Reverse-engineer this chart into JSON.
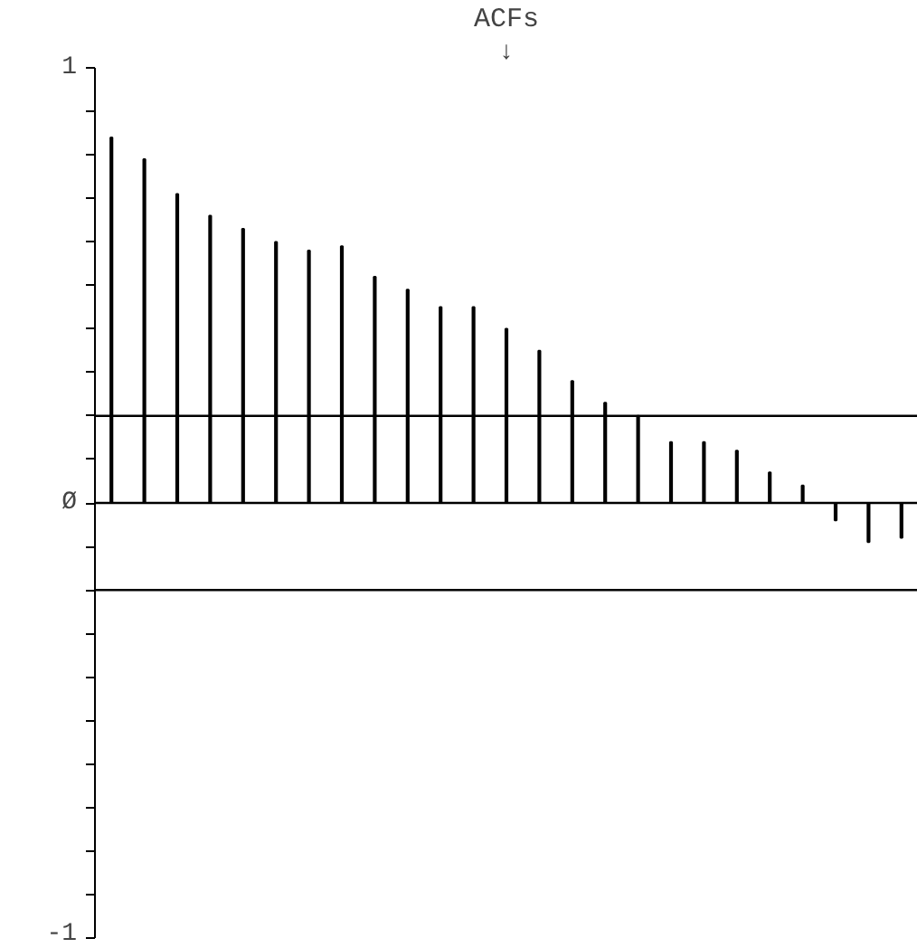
{
  "chart_data": {
    "type": "bar",
    "title": "ACFs",
    "annotations": [
      "↓"
    ],
    "categories": [
      null,
      null,
      null,
      null,
      null,
      null,
      null,
      null,
      null,
      null,
      null,
      null,
      null,
      null,
      null,
      null,
      null,
      null,
      null,
      null,
      null,
      null,
      null,
      null,
      null
    ],
    "values": [
      0.84,
      0.79,
      0.71,
      0.66,
      0.63,
      0.6,
      0.58,
      0.59,
      0.52,
      0.49,
      0.45,
      0.45,
      0.4,
      0.35,
      0.28,
      0.23,
      0.2,
      0.14,
      0.14,
      0.12,
      0.07,
      0.04,
      -0.04,
      -0.09,
      -0.08
    ],
    "color": "#000000",
    "ylim": [
      -1,
      1
    ],
    "yticks": [
      {
        "value": -1,
        "label": "-1"
      },
      {
        "value": -0.9,
        "label": null
      },
      {
        "value": -0.8,
        "label": null
      },
      {
        "value": -0.7,
        "label": null
      },
      {
        "value": -0.6,
        "label": null
      },
      {
        "value": -0.5,
        "label": null
      },
      {
        "value": -0.4,
        "label": null
      },
      {
        "value": -0.3,
        "label": null
      },
      {
        "value": -0.2,
        "label": null
      },
      {
        "value": -0.1,
        "label": null
      },
      {
        "value": 0,
        "label": "Ø"
      },
      {
        "value": 0.1,
        "label": null
      },
      {
        "value": 0.2,
        "label": null
      },
      {
        "value": 0.3,
        "label": null
      },
      {
        "value": 0.4,
        "label": null
      },
      {
        "value": 0.5,
        "label": null
      },
      {
        "value": 0.6,
        "label": null
      },
      {
        "value": 0.7,
        "label": null
      },
      {
        "value": 0.8,
        "label": null
      },
      {
        "value": 0.9,
        "label": null
      },
      {
        "value": 1,
        "label": "1"
      }
    ],
    "ref_lines": [
      {
        "axis": "y",
        "value": 0.2,
        "color": "#000000"
      },
      {
        "axis": "y",
        "value": -0.2,
        "color": "#000000"
      },
      {
        "axis": "y",
        "value": 0,
        "color": "#000000"
      }
    ],
    "tick_labels": "y",
    "grid": false
  }
}
